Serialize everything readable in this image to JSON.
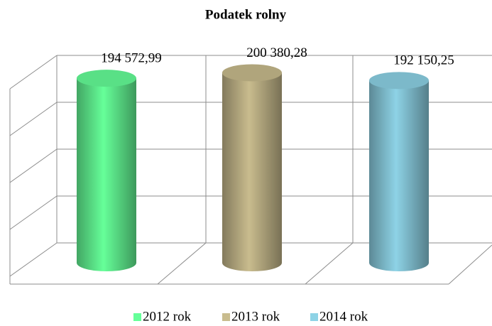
{
  "chart_data": {
    "type": "bar3d",
    "title": "Podatek rolny",
    "categories": [
      "2012 rok",
      "2013 rok",
      "2014 rok"
    ],
    "values": [
      194572.99,
      200380.28,
      192150.25
    ],
    "value_labels": [
      "194 572,99",
      "200 380,28",
      "192 150,25"
    ],
    "colors": [
      "#66ff99",
      "#c9bc8e",
      "#8ed3e6"
    ],
    "ylim": [
      0,
      200000
    ],
    "yticks": [
      0,
      50000,
      100000,
      150000,
      200000
    ],
    "grid": true
  }
}
